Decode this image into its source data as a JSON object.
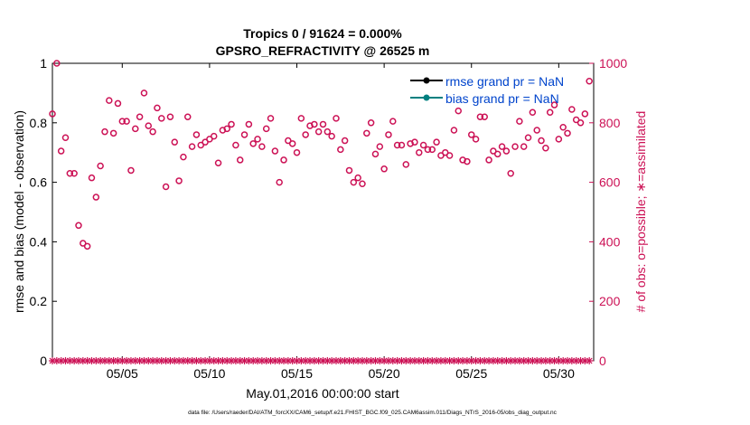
{
  "chart_data": {
    "type": "line",
    "title_line1": "Tropics 0 / 91624 = 0.000%",
    "title_line2": "GPSRO_REFRACTIVITY @ 26525 m",
    "xlabel": "May.01,2016 00:00:00 start",
    "ylabel_left": "rmse and bias (model - observation)",
    "ylabel_right": "# of obs: o=possible; ∗=assimilated",
    "footer": "data file: /Users/raeder/DAI/ATM_forcXX/CAM6_setup/f.e21.FHIST_BGC.f09_025.CAM6assim.011/Diags_NTrS_2016-05/obs_diag_output.nc",
    "x_range": [
      1.0,
      32.0
    ],
    "ylim_left": [
      0,
      1
    ],
    "ylim_right": [
      0,
      1000
    ],
    "x_ticks": [
      {
        "value": 5,
        "label": "05/05"
      },
      {
        "value": 10,
        "label": "05/10"
      },
      {
        "value": 15,
        "label": "05/15"
      },
      {
        "value": 20,
        "label": "05/20"
      },
      {
        "value": 25,
        "label": "05/25"
      },
      {
        "value": 30,
        "label": "05/30"
      }
    ],
    "y_ticks_left": [
      {
        "value": 0,
        "label": "0"
      },
      {
        "value": 0.2,
        "label": "0.2"
      },
      {
        "value": 0.4,
        "label": "0.4"
      },
      {
        "value": 0.6,
        "label": "0.6"
      },
      {
        "value": 0.8,
        "label": "0.8"
      },
      {
        "value": 1,
        "label": "1"
      }
    ],
    "y_ticks_right": [
      {
        "value": 0,
        "label": "0"
      },
      {
        "value": 200,
        "label": "200"
      },
      {
        "value": 400,
        "label": "400"
      },
      {
        "value": 600,
        "label": "600"
      },
      {
        "value": 800,
        "label": "800"
      },
      {
        "value": 1000,
        "label": "1000"
      }
    ],
    "legend": [
      {
        "name": "rmse grand pr = NaN",
        "color": "#000000"
      },
      {
        "name": "bias grand pr = NaN",
        "color": "#008080"
      }
    ],
    "legend_position": "top-right",
    "colors": {
      "obs": "#cc1155",
      "text": "#000000",
      "legend_text": "#0044cc"
    },
    "series": [
      {
        "name": "rmse",
        "values": []
      },
      {
        "name": "bias",
        "values": []
      },
      {
        "name": "obs possible",
        "marker": "circle",
        "x": [
          1.0,
          1.25,
          1.5,
          1.75,
          2.0,
          2.25,
          2.5,
          2.75,
          3.0,
          3.25,
          3.5,
          3.75,
          4.0,
          4.25,
          4.5,
          4.75,
          5.0,
          5.25,
          5.5,
          5.75,
          6.0,
          6.25,
          6.5,
          6.75,
          7.0,
          7.25,
          7.5,
          7.75,
          8.0,
          8.25,
          8.5,
          8.75,
          9.0,
          9.25,
          9.5,
          9.75,
          10.0,
          10.25,
          10.5,
          10.75,
          11.0,
          11.25,
          11.5,
          11.75,
          12.0,
          12.25,
          12.5,
          12.75,
          13.0,
          13.25,
          13.5,
          13.75,
          14.0,
          14.25,
          14.5,
          14.75,
          15.0,
          15.25,
          15.5,
          15.75,
          16.0,
          16.25,
          16.5,
          16.75,
          17.0,
          17.25,
          17.5,
          17.75,
          18.0,
          18.25,
          18.5,
          18.75,
          19.0,
          19.25,
          19.5,
          19.75,
          20.0,
          20.25,
          20.5,
          20.75,
          21.0,
          21.25,
          21.5,
          21.75,
          22.0,
          22.25,
          22.5,
          22.75,
          23.0,
          23.25,
          23.5,
          23.75,
          24.0,
          24.25,
          24.5,
          24.75,
          25.0,
          25.25,
          25.5,
          25.75,
          26.0,
          26.25,
          26.5,
          26.75,
          27.0,
          27.25,
          27.5,
          27.75,
          28.0,
          28.25,
          28.5,
          28.75,
          29.0,
          29.25,
          29.5,
          29.75,
          30.0,
          30.25,
          30.5,
          30.75,
          31.0,
          31.25,
          31.5,
          31.75
        ],
        "values": [
          830,
          1000,
          705,
          750,
          630,
          630,
          455,
          395,
          385,
          615,
          550,
          655,
          770,
          875,
          765,
          865,
          805,
          805,
          640,
          780,
          820,
          900,
          790,
          770,
          850,
          815,
          585,
          820,
          735,
          605,
          685,
          820,
          720,
          760,
          725,
          735,
          745,
          755,
          665,
          775,
          780,
          795,
          725,
          675,
          760,
          795,
          730,
          745,
          720,
          780,
          815,
          705,
          600,
          675,
          740,
          730,
          700,
          815,
          760,
          790,
          795,
          770,
          795,
          770,
          755,
          815,
          710,
          740,
          640,
          600,
          615,
          595,
          765,
          800,
          695,
          720,
          645,
          760,
          805,
          725,
          725,
          660,
          730,
          735,
          700,
          725,
          710,
          710,
          735,
          690,
          700,
          690,
          775,
          840,
          675,
          670,
          760,
          745,
          820,
          820,
          675,
          705,
          695,
          720,
          705,
          630,
          720,
          805,
          720,
          750,
          835,
          775,
          740,
          715,
          835,
          860,
          745,
          785,
          765,
          845,
          810,
          800,
          830,
          940
        ]
      },
      {
        "name": "obs assimilated",
        "marker": "star",
        "x": [
          1.0,
          1.25,
          1.5,
          1.75,
          2.0,
          2.25,
          2.5,
          2.75,
          3.0,
          3.25,
          3.5,
          3.75,
          4.0,
          4.25,
          4.5,
          4.75,
          5.0,
          5.25,
          5.5,
          5.75,
          6.0,
          6.25,
          6.5,
          6.75,
          7.0,
          7.25,
          7.5,
          7.75,
          8.0,
          8.25,
          8.5,
          8.75,
          9.0,
          9.25,
          9.5,
          9.75,
          10.0,
          10.25,
          10.5,
          10.75,
          11.0,
          11.25,
          11.5,
          11.75,
          12.0,
          12.25,
          12.5,
          12.75,
          13.0,
          13.25,
          13.5,
          13.75,
          14.0,
          14.25,
          14.5,
          14.75,
          15.0,
          15.25,
          15.5,
          15.75,
          16.0,
          16.25,
          16.5,
          16.75,
          17.0,
          17.25,
          17.5,
          17.75,
          18.0,
          18.25,
          18.5,
          18.75,
          19.0,
          19.25,
          19.5,
          19.75,
          20.0,
          20.25,
          20.5,
          20.75,
          21.0,
          21.25,
          21.5,
          21.75,
          22.0,
          22.25,
          22.5,
          22.75,
          23.0,
          23.25,
          23.5,
          23.75,
          24.0,
          24.25,
          24.5,
          24.75,
          25.0,
          25.25,
          25.5,
          25.75,
          26.0,
          26.25,
          26.5,
          26.75,
          27.0,
          27.25,
          27.5,
          27.75,
          28.0,
          28.25,
          28.5,
          28.75,
          29.0,
          29.25,
          29.5,
          29.75,
          30.0,
          30.25,
          30.5,
          30.75,
          31.0,
          31.25,
          31.5,
          31.75
        ],
        "values": [
          0,
          0,
          0,
          0,
          0,
          0,
          0,
          0,
          0,
          0,
          0,
          0,
          0,
          0,
          0,
          0,
          0,
          0,
          0,
          0,
          0,
          0,
          0,
          0,
          0,
          0,
          0,
          0,
          0,
          0,
          0,
          0,
          0,
          0,
          0,
          0,
          0,
          0,
          0,
          0,
          0,
          0,
          0,
          0,
          0,
          0,
          0,
          0,
          0,
          0,
          0,
          0,
          0,
          0,
          0,
          0,
          0,
          0,
          0,
          0,
          0,
          0,
          0,
          0,
          0,
          0,
          0,
          0,
          0,
          0,
          0,
          0,
          0,
          0,
          0,
          0,
          0,
          0,
          0,
          0,
          0,
          0,
          0,
          0,
          0,
          0,
          0,
          0,
          0,
          0,
          0,
          0,
          0,
          0,
          0,
          0,
          0,
          0,
          0,
          0,
          0,
          0,
          0,
          0,
          0,
          0,
          0,
          0,
          0,
          0,
          0,
          0,
          0,
          0,
          0,
          0,
          0,
          0,
          0,
          0,
          0,
          0,
          0,
          0
        ]
      }
    ]
  }
}
